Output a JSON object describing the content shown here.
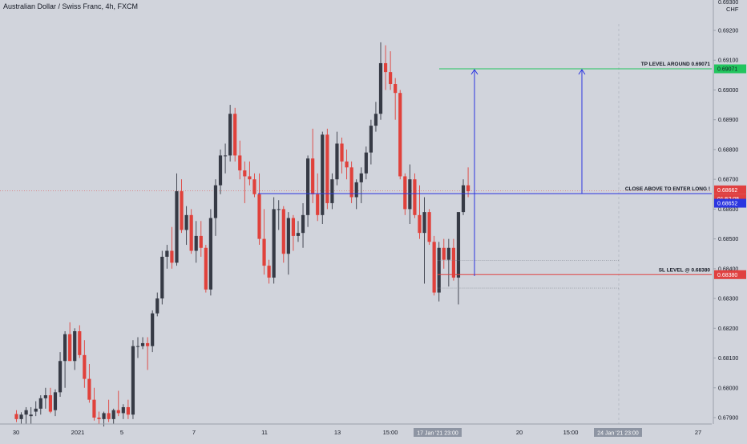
{
  "header": {
    "title": "Australian Dollar / Swiss Franc, 4h, FXCM"
  },
  "axis": {
    "currency": "CHF"
  },
  "colors": {
    "background": "#d1d4dc",
    "up_candle": "#363a45",
    "down_candle": "#e0413b",
    "blue_line": "#2b35e0",
    "tp_line": "#22c55e",
    "sl_line": "#e04040",
    "text": "#131722"
  },
  "chart_data": {
    "type": "candlestick",
    "title": "Australian Dollar / Swiss Franc, 4h, FXCM",
    "ylim": [
      0.6788,
      0.6942
    ],
    "y_ticks": [
      "0.69200",
      "0.69100",
      "0.69000",
      "0.68900",
      "0.68800",
      "0.68700",
      "0.68600",
      "0.68500",
      "0.68400",
      "0.68300",
      "0.68200",
      "0.68100",
      "0.68000",
      "0.67900"
    ],
    "y_top_partial": "0.69300",
    "x_ticks": [
      "30",
      "2021",
      "5",
      "7",
      "11",
      "13",
      "15:00",
      "18",
      "20",
      "15:00",
      "25",
      "27"
    ],
    "crosshair_labels": {
      "x_left": "17 Jan '21 23:00",
      "x_right": "24 Jan '21 23:00"
    },
    "price_tags": {
      "tp": "0.69071",
      "current": "0.68662",
      "countdown": "01:52:05",
      "entry": "0.68652",
      "sl": "0.68380"
    },
    "annotations": {
      "tp": "TP LEVEL AROUND 0.69071",
      "entry": "CLOSE ABOVE TO ENTER LONG !",
      "sl": "SL LEVEL @ 0.68380"
    },
    "levels": {
      "tp": 0.69071,
      "entry": 0.68652,
      "current": 0.68662,
      "sl": 0.6838,
      "zone_top": 0.68428,
      "zone_bottom": 0.68335
    },
    "candles": [
      [
        0.67912,
        0.67925,
        0.67885,
        0.67895
      ],
      [
        0.67895,
        0.67918,
        0.6788,
        0.6791
      ],
      [
        0.6791,
        0.67935,
        0.6788,
        0.67925
      ],
      [
        0.67905,
        0.67935,
        0.6788,
        0.6791
      ],
      [
        0.6792,
        0.67955,
        0.67905,
        0.6793
      ],
      [
        0.6793,
        0.67975,
        0.6791,
        0.67965
      ],
      [
        0.67965,
        0.68,
        0.6793,
        0.67975
      ],
      [
        0.67975,
        0.68,
        0.67915,
        0.6792
      ],
      [
        0.67925,
        0.67995,
        0.67905,
        0.67985
      ],
      [
        0.67985,
        0.6812,
        0.6797,
        0.6809
      ],
      [
        0.6809,
        0.6819,
        0.68,
        0.6818
      ],
      [
        0.6818,
        0.6822,
        0.6809,
        0.6809
      ],
      [
        0.6809,
        0.682,
        0.6806,
        0.6819
      ],
      [
        0.6819,
        0.6821,
        0.681,
        0.6811
      ],
      [
        0.6811,
        0.6816,
        0.68,
        0.6803
      ],
      [
        0.6803,
        0.6808,
        0.6795,
        0.6796
      ],
      [
        0.6796,
        0.68,
        0.6789,
        0.679
      ],
      [
        0.679,
        0.6792,
        0.6788,
        0.67895
      ],
      [
        0.67895,
        0.6792,
        0.6787,
        0.67915
      ],
      [
        0.67915,
        0.6796,
        0.67885,
        0.67895
      ],
      [
        0.67895,
        0.6793,
        0.6788,
        0.67925
      ],
      [
        0.67925,
        0.6799,
        0.67905,
        0.67915
      ],
      [
        0.67915,
        0.67945,
        0.67895,
        0.67935
      ],
      [
        0.67935,
        0.6796,
        0.67895,
        0.6791
      ],
      [
        0.6791,
        0.6816,
        0.67895,
        0.6814
      ],
      [
        0.6814,
        0.6817,
        0.681,
        0.6814
      ],
      [
        0.6814,
        0.6817,
        0.6813,
        0.6815
      ],
      [
        0.6815,
        0.6817,
        0.6806,
        0.6814
      ],
      [
        0.6814,
        0.6826,
        0.6812,
        0.6825
      ],
      [
        0.6825,
        0.6832,
        0.6824,
        0.683
      ],
      [
        0.683,
        0.6846,
        0.6828,
        0.6844
      ],
      [
        0.6844,
        0.6848,
        0.684,
        0.6846
      ],
      [
        0.6846,
        0.6854,
        0.684,
        0.6842
      ],
      [
        0.6842,
        0.6872,
        0.6841,
        0.6866
      ],
      [
        0.6866,
        0.687,
        0.6852,
        0.6853
      ],
      [
        0.6853,
        0.6861,
        0.6848,
        0.6858
      ],
      [
        0.6858,
        0.686,
        0.6845,
        0.6846
      ],
      [
        0.6846,
        0.6856,
        0.6842,
        0.6851
      ],
      [
        0.6851,
        0.6856,
        0.6844,
        0.6847
      ],
      [
        0.6847,
        0.6848,
        0.6832,
        0.6833
      ],
      [
        0.6833,
        0.686,
        0.6831,
        0.6857
      ],
      [
        0.6857,
        0.687,
        0.6851,
        0.6868
      ],
      [
        0.6868,
        0.688,
        0.6865,
        0.6878
      ],
      [
        0.6878,
        0.6882,
        0.6872,
        0.6878
      ],
      [
        0.6878,
        0.6895,
        0.6876,
        0.6892
      ],
      [
        0.6892,
        0.6894,
        0.6876,
        0.6878
      ],
      [
        0.6878,
        0.6883,
        0.687,
        0.6873
      ],
      [
        0.6873,
        0.6876,
        0.6862,
        0.6871
      ],
      [
        0.6871,
        0.6876,
        0.6868,
        0.687
      ],
      [
        0.687,
        0.6872,
        0.6864,
        0.6865
      ],
      [
        0.6865,
        0.6872,
        0.6848,
        0.685
      ],
      [
        0.685,
        0.686,
        0.6838,
        0.6841
      ],
      [
        0.6841,
        0.6843,
        0.6835,
        0.6837
      ],
      [
        0.6837,
        0.6864,
        0.6835,
        0.686
      ],
      [
        0.686,
        0.6863,
        0.6853,
        0.686
      ],
      [
        0.686,
        0.6861,
        0.6842,
        0.6845
      ],
      [
        0.6845,
        0.6859,
        0.6838,
        0.6857
      ],
      [
        0.6857,
        0.6858,
        0.6846,
        0.6851
      ],
      [
        0.6851,
        0.6856,
        0.6849,
        0.6852
      ],
      [
        0.6852,
        0.6862,
        0.6847,
        0.6858
      ],
      [
        0.6858,
        0.6878,
        0.6854,
        0.6877
      ],
      [
        0.6877,
        0.6887,
        0.6862,
        0.6865
      ],
      [
        0.6865,
        0.6872,
        0.6856,
        0.6858
      ],
      [
        0.6858,
        0.6886,
        0.6855,
        0.6885
      ],
      [
        0.6885,
        0.6887,
        0.686,
        0.6862
      ],
      [
        0.6862,
        0.6872,
        0.686,
        0.687
      ],
      [
        0.687,
        0.6886,
        0.6868,
        0.6882
      ],
      [
        0.6882,
        0.6884,
        0.6872,
        0.6876
      ],
      [
        0.6876,
        0.688,
        0.687,
        0.6874
      ],
      [
        0.6874,
        0.6876,
        0.6862,
        0.6864
      ],
      [
        0.6864,
        0.687,
        0.686,
        0.6869
      ],
      [
        0.6869,
        0.6874,
        0.6862,
        0.6872
      ],
      [
        0.6872,
        0.6881,
        0.687,
        0.6879
      ],
      [
        0.6879,
        0.689,
        0.6875,
        0.6888
      ],
      [
        0.6888,
        0.6896,
        0.6886,
        0.6892
      ],
      [
        0.6892,
        0.6916,
        0.689,
        0.6909
      ],
      [
        0.6909,
        0.6915,
        0.69,
        0.6906
      ],
      [
        0.6906,
        0.6913,
        0.69,
        0.6902
      ],
      [
        0.6902,
        0.6904,
        0.689,
        0.6899
      ],
      [
        0.6899,
        0.69,
        0.687,
        0.6871
      ],
      [
        0.6871,
        0.6872,
        0.6858,
        0.686
      ],
      [
        0.686,
        0.6875,
        0.6855,
        0.687
      ],
      [
        0.687,
        0.6872,
        0.6857,
        0.6858
      ],
      [
        0.6858,
        0.6868,
        0.685,
        0.6852
      ],
      [
        0.6852,
        0.6864,
        0.6835,
        0.6859
      ],
      [
        0.6859,
        0.686,
        0.6848,
        0.6849
      ],
      [
        0.6849,
        0.6851,
        0.6831,
        0.6832
      ],
      [
        0.6832,
        0.6849,
        0.6829,
        0.6847
      ],
      [
        0.6847,
        0.685,
        0.684,
        0.6843
      ],
      [
        0.6843,
        0.685,
        0.6834,
        0.6847
      ],
      [
        0.6847,
        0.685,
        0.6836,
        0.6837
      ],
      [
        0.6837,
        0.6859,
        0.6828,
        0.6859
      ],
      [
        0.6859,
        0.687,
        0.6858,
        0.6868
      ],
      [
        0.6868,
        0.6874,
        0.6864,
        0.6866
      ]
    ]
  }
}
